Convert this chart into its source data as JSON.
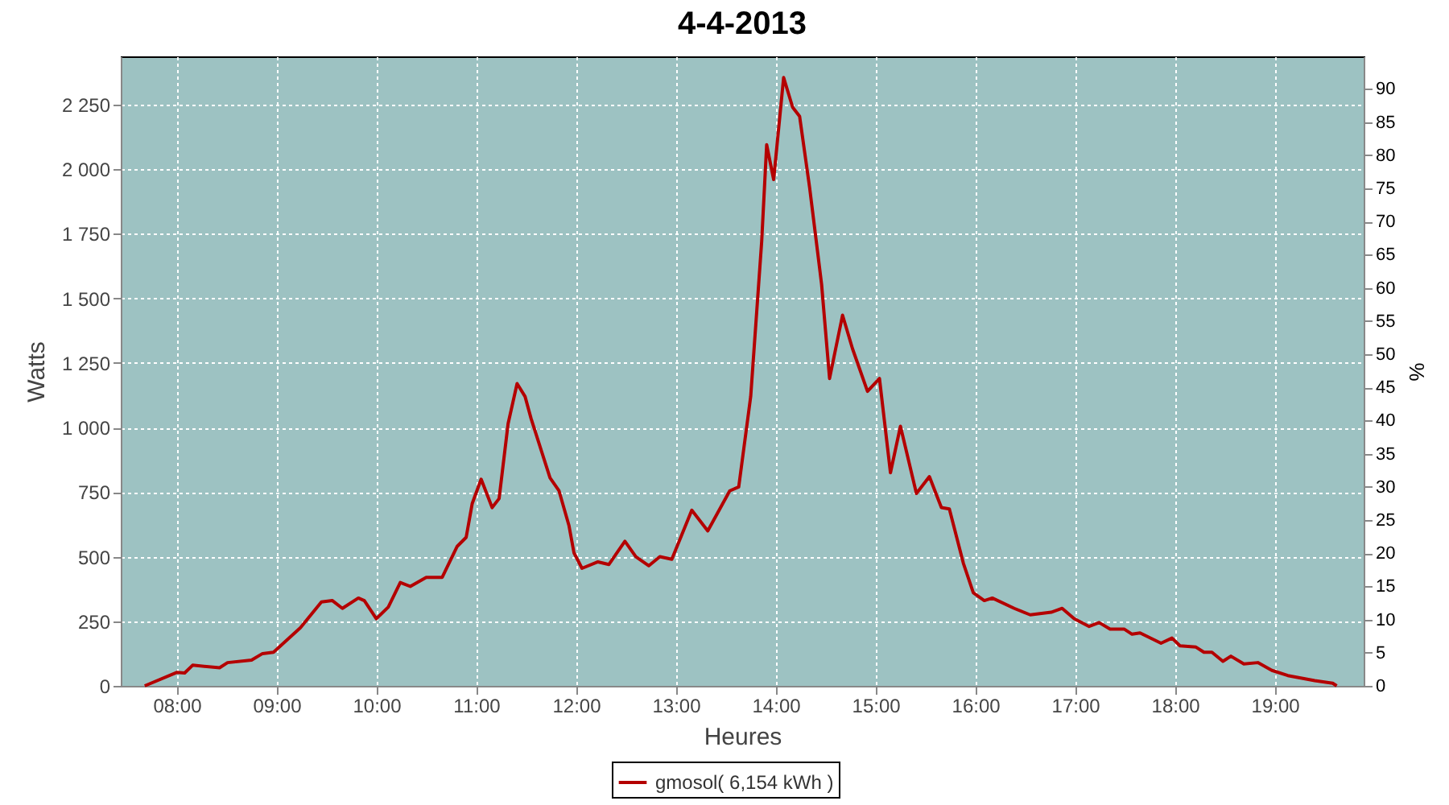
{
  "chart_data": {
    "type": "line",
    "title": "4-4-2013",
    "xlabel": "Heures",
    "ylabel": "Watts",
    "y2label": "%",
    "x": [
      7.68,
      8.0,
      8.08,
      8.16,
      8.43,
      8.51,
      8.75,
      8.86,
      8.97,
      9.24,
      9.45,
      9.56,
      9.66,
      9.82,
      9.88,
      10.0,
      10.12,
      10.24,
      10.34,
      10.5,
      10.66,
      10.81,
      10.9,
      10.96,
      11.05,
      11.16,
      11.23,
      11.32,
      11.41,
      11.49,
      11.55,
      11.74,
      11.83,
      11.93,
      11.98,
      12.06,
      12.22,
      12.33,
      12.49,
      12.6,
      12.73,
      12.84,
      12.96,
      13.16,
      13.32,
      13.54,
      13.63,
      13.75,
      13.86,
      13.91,
      13.98,
      14.08,
      14.17,
      14.24,
      14.34,
      14.46,
      14.54,
      14.67,
      14.77,
      14.92,
      15.04,
      15.15,
      15.25,
      15.41,
      15.54,
      15.66,
      15.74,
      15.88,
      15.98,
      16.09,
      16.17,
      16.39,
      16.55,
      16.76,
      16.87,
      16.99,
      17.14,
      17.24,
      17.35,
      17.49,
      17.57,
      17.65,
      17.86,
      17.97,
      18.05,
      18.21,
      18.29,
      18.37,
      18.48,
      18.56,
      18.69,
      18.83,
      18.97,
      19.13,
      19.4,
      19.58,
      19.62
    ],
    "series": [
      {
        "name": "gmosol( 6,154 kWh )",
        "color": "#b40000",
        "values": [
          0,
          52,
          50,
          80,
          70,
          90,
          100,
          125,
          130,
          225,
          325,
          330,
          300,
          340,
          330,
          260,
          305,
          400,
          385,
          420,
          420,
          540,
          575,
          705,
          800,
          690,
          725,
          1015,
          1170,
          1120,
          1035,
          805,
          755,
          620,
          515,
          455,
          480,
          470,
          560,
          500,
          465,
          500,
          490,
          680,
          600,
          755,
          770,
          1120,
          1720,
          2095,
          1960,
          2355,
          2240,
          2205,
          1930,
          1555,
          1190,
          1435,
          1305,
          1140,
          1190,
          825,
          1005,
          745,
          810,
          690,
          685,
          475,
          360,
          330,
          340,
          300,
          275,
          285,
          300,
          260,
          230,
          245,
          220,
          220,
          200,
          205,
          165,
          185,
          155,
          150,
          130,
          130,
          95,
          115,
          85,
          90,
          60,
          40,
          20,
          10,
          0
        ]
      }
    ],
    "xlim": [
      7.44,
      19.89
    ],
    "ylim": [
      0,
      2437
    ],
    "y2lim": [
      0,
      94.9
    ],
    "xticks": [
      {
        "value": 8,
        "label": "08:00"
      },
      {
        "value": 9,
        "label": "09:00"
      },
      {
        "value": 10,
        "label": "10:00"
      },
      {
        "value": 11,
        "label": "11:00"
      },
      {
        "value": 12,
        "label": "12:00"
      },
      {
        "value": 13,
        "label": "13:00"
      },
      {
        "value": 14,
        "label": "14:00"
      },
      {
        "value": 15,
        "label": "15:00"
      },
      {
        "value": 16,
        "label": "16:00"
      },
      {
        "value": 17,
        "label": "17:00"
      },
      {
        "value": 18,
        "label": "18:00"
      },
      {
        "value": 19,
        "label": "19:00"
      }
    ],
    "yticks": [
      0,
      250,
      500,
      750,
      {
        "value": 1000,
        "label": "1 000"
      },
      {
        "value": 1250,
        "label": "1 250"
      },
      {
        "value": 1500,
        "label": "1 500"
      },
      {
        "value": 1750,
        "label": "1 750"
      },
      {
        "value": 2000,
        "label": "2 000"
      },
      {
        "value": 2250,
        "label": "2 250"
      }
    ],
    "y2ticks": [
      0,
      5,
      10,
      15,
      20,
      25,
      30,
      35,
      40,
      45,
      50,
      55,
      60,
      65,
      70,
      75,
      80,
      85,
      90
    ],
    "grid": true,
    "legend": "bottom",
    "line_style": "solid",
    "marker": "none"
  }
}
